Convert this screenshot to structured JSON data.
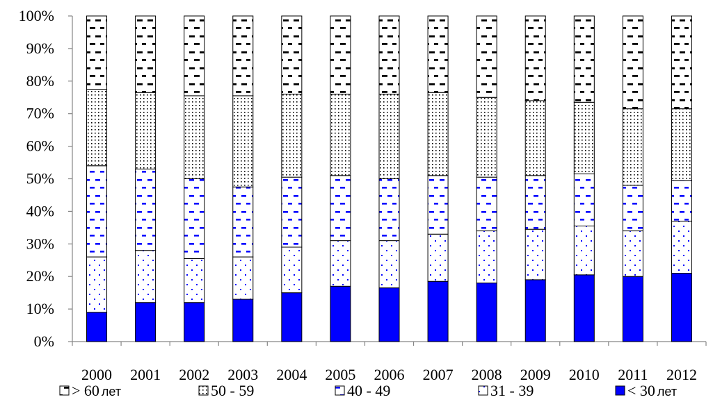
{
  "chart_data": {
    "type": "bar",
    "stacked": true,
    "percent": true,
    "categories": [
      "2000",
      "2001",
      "2002",
      "2003",
      "2004",
      "2005",
      "2006",
      "2007",
      "2008",
      "2009",
      "2010",
      "2011",
      "2012"
    ],
    "series": [
      {
        "name": "< 30 лет",
        "legend_prefix": "<",
        "legend_number": "30",
        "legend_suffix": "лет",
        "color": "#0000ff",
        "pattern": "solid",
        "values": [
          9,
          12,
          12,
          13,
          15,
          17,
          16.5,
          18.5,
          18,
          19,
          20.5,
          20,
          21
        ]
      },
      {
        "name": "31 - 39",
        "legend_text": "31 - 39",
        "color": "#ffffff",
        "pattern": "sparse-dots",
        "values": [
          17,
          16,
          13.5,
          13,
          14,
          14,
          14.5,
          14.5,
          16,
          15.5,
          15,
          14,
          16
        ]
      },
      {
        "name": "40 - 49",
        "legend_text": "40 - 49",
        "color": "#ffffff",
        "pattern": "blue-dashes",
        "values": [
          28,
          25,
          24.5,
          21.5,
          21.5,
          20,
          19,
          18,
          16.5,
          16.5,
          16,
          14,
          12.5
        ]
      },
      {
        "name": "50 - 59",
        "legend_text": "50 - 59",
        "color": "#ffffff",
        "pattern": "dense-dots",
        "values": [
          23.5,
          23.5,
          25.5,
          28,
          25.5,
          25,
          26,
          25.5,
          24.5,
          23,
          22,
          23.5,
          22
        ]
      },
      {
        "name": "> 60 лет",
        "legend_prefix": ">",
        "legend_number": "60",
        "legend_suffix": "лет",
        "color": "#ffffff",
        "pattern": "black-dashes",
        "values": [
          22.5,
          23.5,
          24.5,
          24.5,
          24,
          24,
          24,
          23.5,
          25,
          26,
          26.5,
          28.5,
          28.5
        ]
      }
    ],
    "ylim": [
      0,
      100
    ],
    "y_ticks": [
      "0%",
      "10%",
      "20%",
      "30%",
      "40%",
      "50%",
      "60%",
      "70%",
      "80%",
      "90%",
      "100%"
    ],
    "legend_position": "bottom",
    "legend_order": [
      "> 60 лет",
      "50 - 59",
      "40 - 49",
      "31 - 39",
      "< 30 лет"
    ],
    "grid": false
  }
}
